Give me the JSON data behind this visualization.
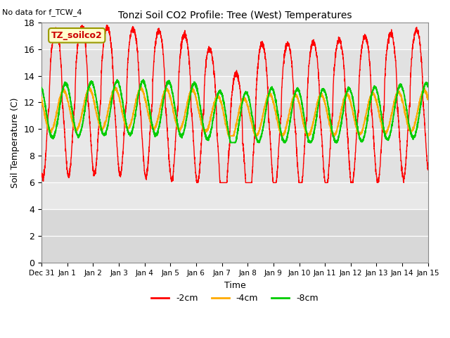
{
  "title": "Tonzi Soil CO2 Profile: Tree (West) Temperatures",
  "top_left_text": "No data for f_TCW_4",
  "xlabel": "Time",
  "ylabel": "Soil Temperature (C)",
  "ylim": [
    0,
    18
  ],
  "yticks": [
    0,
    2,
    4,
    6,
    8,
    10,
    12,
    14,
    16,
    18
  ],
  "legend_label": "TZ_soilco2",
  "series_labels": [
    "-2cm",
    "-4cm",
    "-8cm"
  ],
  "series_colors": [
    "#ff0000",
    "#ffaa00",
    "#00cc00"
  ],
  "bg_main": "#e8e8e8",
  "bg_dark": "#d4d4d4",
  "bg_lower": "#d8d8d8",
  "xtick_labels": [
    "Dec 31",
    "Jan 1",
    "Jan 2",
    "Jan 3",
    "Jan 4",
    "Jan 5",
    "Jan 6",
    "Jan 7",
    "Jan 8",
    "Jan 9",
    "Jan 10",
    "Jan 11",
    "Jan 12",
    "Jan 13",
    "Jan 14",
    "Jan 15"
  ],
  "figsize": [
    6.4,
    4.8
  ],
  "dpi": 100
}
